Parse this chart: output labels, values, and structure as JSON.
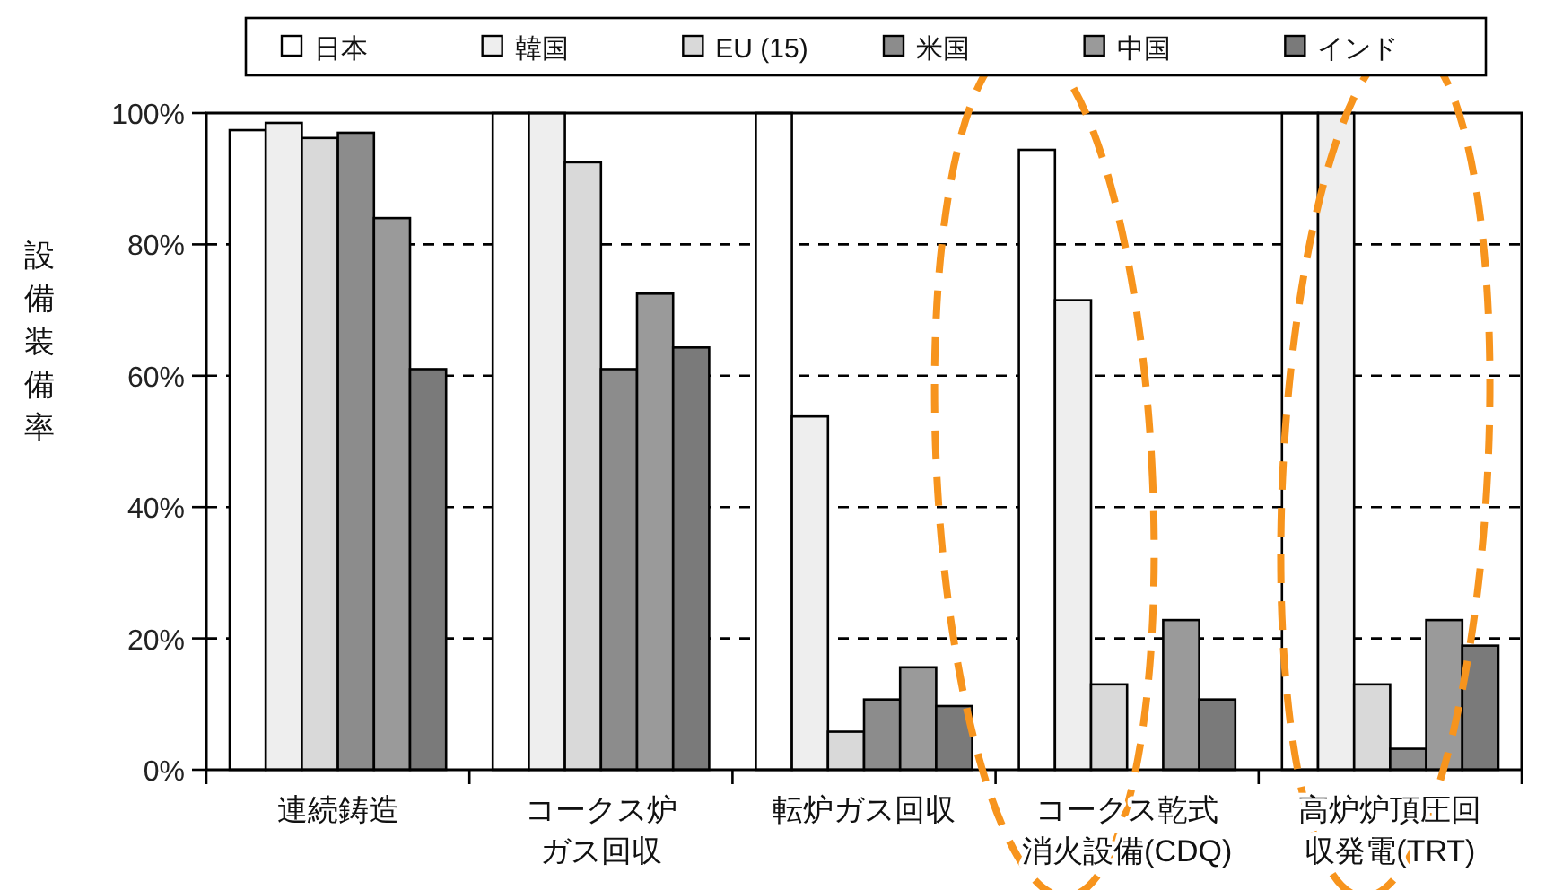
{
  "chart_data": {
    "type": "bar",
    "categories": [
      "連続鋳造",
      "コークス炉ガス回収",
      "転炉ガス回収",
      "コークス乾式消火設備(CDQ)",
      "高炉炉頂圧回収発電(TRT)"
    ],
    "series": [
      {
        "name": "日本",
        "color": "#ffffff",
        "values": [
          97.4,
          100,
          100,
          94.4,
          100
        ]
      },
      {
        "name": "韓国",
        "color": "#eeeeee",
        "values": [
          98.5,
          100,
          53.8,
          71.5,
          100
        ]
      },
      {
        "name": "EU (15)",
        "color": "#d9d9d9",
        "values": [
          96.2,
          92.5,
          5.8,
          13.0,
          13.0
        ]
      },
      {
        "name": "米国",
        "color": "#8c8c8c",
        "values": [
          97.0,
          61.0,
          10.7,
          null,
          3.2
        ]
      },
      {
        "name": "中国",
        "color": "#9a9a9a",
        "values": [
          84.0,
          72.5,
          15.6,
          22.8,
          22.8
        ]
      },
      {
        "name": "インド",
        "color": "#7a7a7a",
        "values": [
          61.0,
          64.3,
          9.7,
          10.7,
          18.9
        ]
      }
    ],
    "ylabel": "設備装備率",
    "ylim": [
      0,
      100
    ],
    "yticks": [
      {
        "value": 0,
        "label": "0%"
      },
      {
        "value": 20,
        "label": "20%"
      },
      {
        "value": 40,
        "label": "40%"
      },
      {
        "value": 60,
        "label": "60%"
      },
      {
        "value": 80,
        "label": "80%"
      },
      {
        "value": 100,
        "label": "100%"
      }
    ],
    "grid": "y",
    "legend": "top"
  }
}
